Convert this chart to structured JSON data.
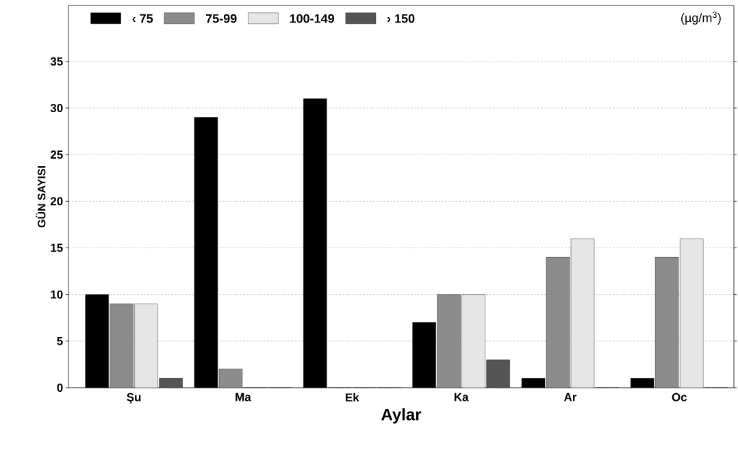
{
  "chart_data": {
    "type": "bar",
    "xlabel": "Aylar",
    "ylabel": "GÜN SAYISI",
    "legend_title": "(µg/m$^{3}$)",
    "categories": [
      "Şu",
      "Ma",
      "Ek",
      "Ka",
      "Ar",
      "Oc"
    ],
    "series": [
      {
        "name": "‹ 75",
        "color": "#000000",
        "values": [
          10,
          29,
          31,
          7,
          1,
          1
        ]
      },
      {
        "name": "75-99",
        "color": "#8c8c8c",
        "values": [
          9,
          2,
          0,
          10,
          14,
          14
        ]
      },
      {
        "name": "100-149",
        "color": "#e6e6e6",
        "values": [
          9,
          0,
          0,
          10,
          16,
          16
        ]
      },
      {
        "name": "› 150",
        "color": "#555555",
        "values": [
          1,
          0,
          0,
          3,
          0,
          0
        ]
      }
    ],
    "ylim": [
      0,
      41
    ],
    "yticks": [
      0,
      5,
      10,
      15,
      20,
      25,
      30,
      35
    ],
    "grid": "y",
    "legend": "top"
  }
}
